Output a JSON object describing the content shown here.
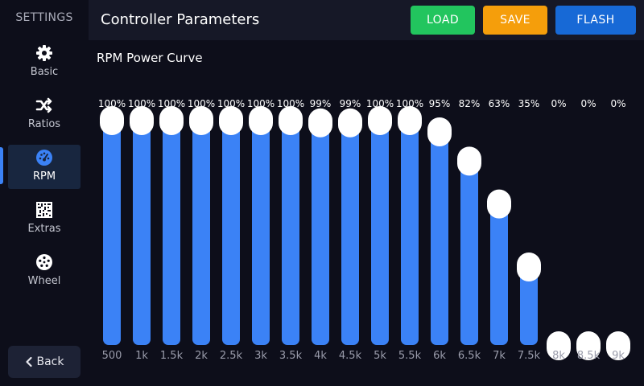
{
  "sidebar": {
    "title": "SETTINGS",
    "items": [
      {
        "label": "Basic",
        "icon": "gear-icon",
        "active": false
      },
      {
        "label": "Ratios",
        "icon": "shuffle-icon",
        "active": false
      },
      {
        "label": "RPM",
        "icon": "gauge-icon",
        "active": true
      },
      {
        "label": "Extras",
        "icon": "qr-icon",
        "active": false
      },
      {
        "label": "Wheel",
        "icon": "wheel-icon",
        "active": false
      }
    ],
    "back_label": "Back"
  },
  "header": {
    "title": "Controller Parameters",
    "buttons": {
      "load": "LOAD",
      "save": "SAVE",
      "flash": "FLASH"
    }
  },
  "main": {
    "section_title": "RPM Power Curve"
  },
  "colors": {
    "accent": "#3b82f6",
    "load": "#22c55e",
    "save": "#f59e0b",
    "flash": "#1769d6",
    "knob": "#ffffff"
  },
  "chart_data": {
    "type": "bar",
    "categories": [
      "500",
      "1k",
      "1.5k",
      "2k",
      "2.5k",
      "3k",
      "3.5k",
      "4k",
      "4.5k",
      "5k",
      "5.5k",
      "6k",
      "6.5k",
      "7k",
      "7.5k",
      "8k",
      "8.5k",
      "9k"
    ],
    "value_labels": [
      "100%",
      "100%",
      "100%",
      "100%",
      "100%",
      "100%",
      "100%",
      "99%",
      "99%",
      "100%",
      "100%",
      "95%",
      "82%",
      "63%",
      "35%",
      "0%",
      "0%",
      "0%"
    ],
    "values": [
      100,
      100,
      100,
      100,
      100,
      100,
      100,
      99,
      99,
      100,
      100,
      95,
      82,
      63,
      35,
      0,
      0,
      0
    ],
    "ylim": [
      0,
      100
    ]
  }
}
